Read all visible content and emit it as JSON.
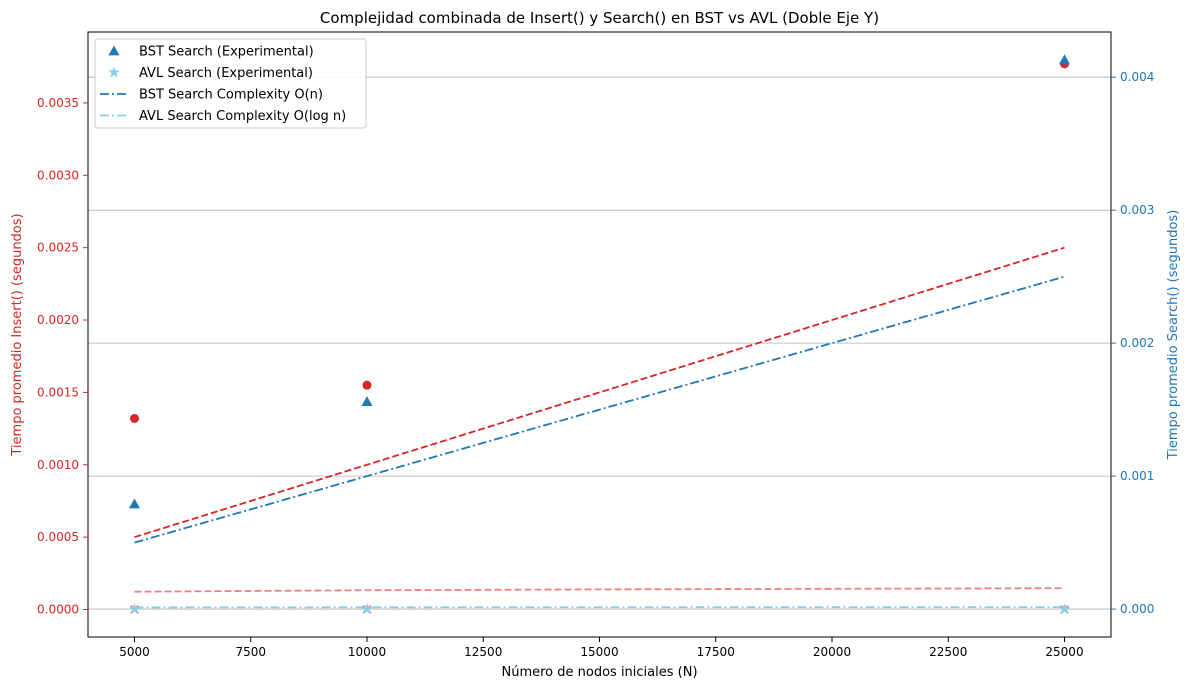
{
  "chart_data": {
    "type": "scatter",
    "title": "Complejidad combinada de Insert() y Search() en BST vs AVL (Doble Eje Y)",
    "xlabel": "Número de nodos iniciales (N)",
    "ylabel_left": "Tiempo promedio Insert() (segundos)",
    "ylabel_right": "Tiempo promedio Search() (segundos)",
    "xlim": [
      4000,
      26000
    ],
    "ylim_left": [
      -0.00019,
      0.00399
    ],
    "ylim_right": [
      -0.00021,
      0.00434
    ],
    "x_ticks": [
      5000,
      7500,
      10000,
      12500,
      15000,
      17500,
      20000,
      22500,
      25000
    ],
    "x_tick_labels": [
      "5000",
      "7500",
      "10000",
      "12500",
      "15000",
      "17500",
      "20000",
      "22500",
      "25000"
    ],
    "y_left_ticks": [
      0.0,
      0.0005,
      0.001,
      0.0015,
      0.002,
      0.0025,
      0.003,
      0.0035
    ],
    "y_left_tick_labels": [
      "0.0000",
      "0.0005",
      "0.0010",
      "0.0015",
      "0.0020",
      "0.0025",
      "0.0030",
      "0.0035"
    ],
    "y_right_ticks": [
      0.0,
      0.001,
      0.002,
      0.003,
      0.004
    ],
    "y_right_tick_labels": [
      "0.000",
      "0.001",
      "0.002",
      "0.003",
      "0.004"
    ],
    "grid_y_right": true,
    "legend_position": "top-left",
    "colors": {
      "left_axis": "#d62728",
      "right_axis": "#1f77b4",
      "bst_insert": "#d62728",
      "avl_insert_line": "#f08080",
      "bst_search": "#1f77b4",
      "avl_search": "#87ceeb"
    },
    "series": [
      {
        "name": "",
        "axis": "left",
        "kind": "scatter",
        "marker": "circle",
        "color": "#d62728",
        "x": [
          5000,
          10000,
          25000
        ],
        "y": [
          0.00132,
          0.00155,
          0.00377
        ]
      },
      {
        "name": "",
        "axis": "left",
        "kind": "scatter",
        "marker": "x",
        "color": "#f08080",
        "x": [
          5000,
          10000,
          25000
        ],
        "y": [
          0.0,
          0.0,
          0.0
        ]
      },
      {
        "name": "",
        "axis": "left",
        "kind": "line",
        "dash": "dashed",
        "color": "#d62728",
        "x": [
          5000,
          25000
        ],
        "y": [
          0.0005,
          0.0025
        ]
      },
      {
        "name": "",
        "axis": "left",
        "kind": "line",
        "dash": "dashed",
        "color": "#f08080",
        "x": [
          5000,
          10000,
          15000,
          20000,
          25000
        ],
        "y": [
          0.000123,
          0.000133,
          0.000139,
          0.000143,
          0.000147
        ]
      },
      {
        "name": "BST Search (Experimental)",
        "axis": "right",
        "kind": "scatter",
        "marker": "triangle",
        "color": "#1f77b4",
        "x": [
          5000,
          10000,
          25000
        ],
        "y": [
          0.00079,
          0.00156,
          0.00413
        ]
      },
      {
        "name": "AVL Search (Experimental)",
        "axis": "right",
        "kind": "scatter",
        "marker": "star",
        "color": "#87ceeb",
        "x": [
          5000,
          10000,
          25000
        ],
        "y": [
          0.0,
          0.0,
          0.0
        ]
      },
      {
        "name": "BST Search Complexity O(n)",
        "axis": "right",
        "kind": "line",
        "dash": "dashdot",
        "color": "#1f77b4",
        "x": [
          5000,
          25000
        ],
        "y": [
          0.0005,
          0.0025
        ]
      },
      {
        "name": "AVL Search Complexity O(log n)",
        "axis": "right",
        "kind": "line",
        "dash": "dashdot",
        "color": "#87ceeb",
        "x": [
          5000,
          10000,
          15000,
          20000,
          25000
        ],
        "y": [
          1.23e-05,
          1.33e-05,
          1.39e-05,
          1.43e-05,
          1.47e-05
        ]
      }
    ],
    "legend": [
      "BST Search (Experimental)",
      "AVL Search (Experimental)",
      "BST Search Complexity O(n)",
      "AVL Search Complexity O(log n)"
    ]
  }
}
